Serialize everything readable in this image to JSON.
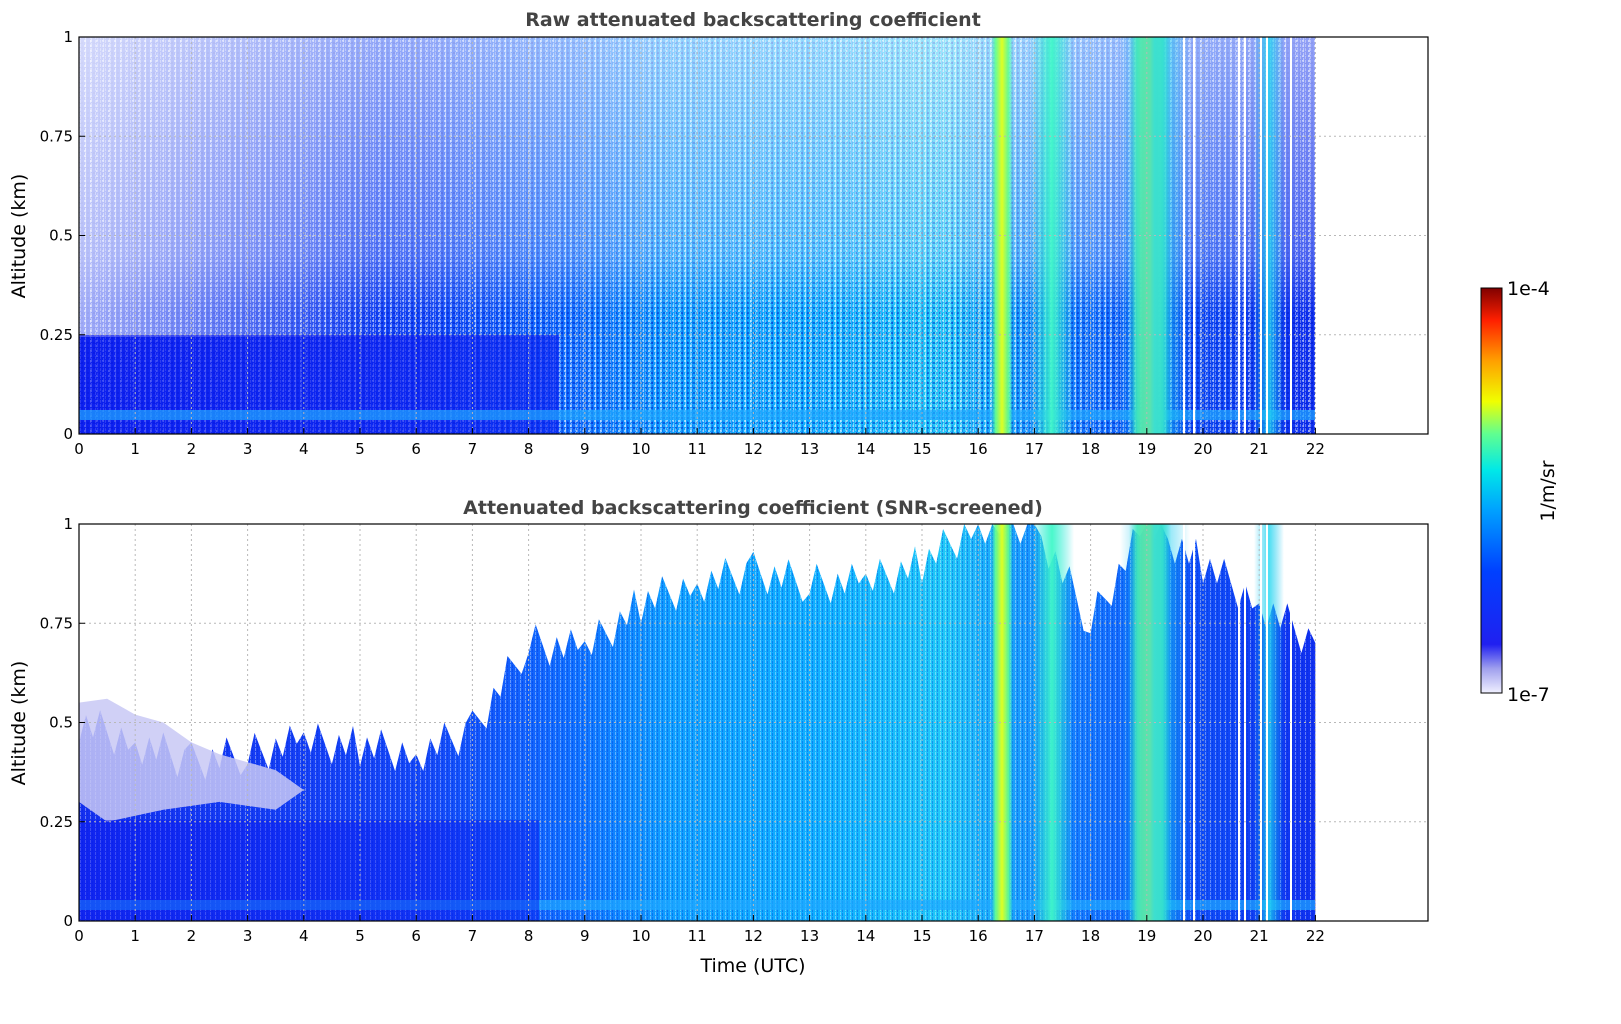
{
  "chart_data": [
    {
      "type": "heatmap",
      "title": "Raw attenuated backscattering coefficient",
      "xlabel": "",
      "ylabel": "Altitude (km)",
      "xlim": [
        0,
        24
      ],
      "ylim": [
        0,
        1
      ],
      "x_ticks": [
        "0",
        "1",
        "2",
        "3",
        "4",
        "5",
        "6",
        "7",
        "8",
        "9",
        "10",
        "11",
        "12",
        "13",
        "14",
        "15",
        "16",
        "17",
        "18",
        "19",
        "20",
        "21",
        "22"
      ],
      "y_ticks": [
        "0",
        "0.25",
        "0.5",
        "0.75",
        "1"
      ],
      "grid": true,
      "data_end_hour": 22,
      "time_bands_hours": [
        {
          "start": 16.3,
          "end": 16.6,
          "intensity": "high"
        },
        {
          "start": 17.0,
          "end": 17.7,
          "intensity": "medium"
        },
        {
          "start": 18.8,
          "end": 19.5,
          "intensity": "very high"
        },
        {
          "start": 20.6,
          "end": 21.3,
          "intensity": "medium"
        }
      ],
      "screened": false
    },
    {
      "type": "heatmap",
      "title": "Attenuated backscattering coefficient (SNR-screened)",
      "xlabel": "Time (UTC)",
      "ylabel": "Altitude (km)",
      "xlim": [
        0,
        24
      ],
      "ylim": [
        0,
        1
      ],
      "x_ticks": [
        "0",
        "1",
        "2",
        "3",
        "4",
        "5",
        "6",
        "7",
        "8",
        "9",
        "10",
        "11",
        "12",
        "13",
        "14",
        "15",
        "16",
        "17",
        "18",
        "19",
        "20",
        "21",
        "22"
      ],
      "y_ticks": [
        "0",
        "0.25",
        "0.5",
        "0.75",
        "1"
      ],
      "grid": true,
      "data_end_hour": 22,
      "screened": true,
      "signal_top_km": [
        {
          "hour": 0,
          "km": 0.5
        },
        {
          "hour": 1,
          "km": 0.45
        },
        {
          "hour": 2,
          "km": 0.4
        },
        {
          "hour": 3,
          "km": 0.42
        },
        {
          "hour": 4,
          "km": 0.45
        },
        {
          "hour": 5,
          "km": 0.44
        },
        {
          "hour": 6,
          "km": 0.42
        },
        {
          "hour": 7,
          "km": 0.48
        },
        {
          "hour": 8,
          "km": 0.7
        },
        {
          "hour": 9,
          "km": 0.68
        },
        {
          "hour": 10,
          "km": 0.8
        },
        {
          "hour": 11,
          "km": 0.85
        },
        {
          "hour": 12,
          "km": 0.88
        },
        {
          "hour": 13,
          "km": 0.85
        },
        {
          "hour": 14,
          "km": 0.85
        },
        {
          "hour": 15,
          "km": 0.9
        },
        {
          "hour": 16,
          "km": 1.0
        },
        {
          "hour": 17,
          "km": 1.0
        },
        {
          "hour": 18,
          "km": 0.75
        },
        {
          "hour": 19,
          "km": 1.0
        },
        {
          "hour": 20,
          "km": 0.9
        },
        {
          "hour": 21,
          "km": 0.8
        },
        {
          "hour": 22,
          "km": 0.7
        }
      ]
    }
  ],
  "colorbar": {
    "label": "1/m/sr",
    "max_label": "1e-4",
    "min_label": "1e-7",
    "colors": [
      "#e8e8fa",
      "#c8c8f2",
      "#9a9aee",
      "#5050ea",
      "#0000f0",
      "#0020ff",
      "#0060ff",
      "#00a0ff",
      "#00e0f0",
      "#30ffc0",
      "#a0ff50",
      "#ffff00",
      "#ffb000",
      "#ff5000",
      "#e00000",
      "#800000"
    ]
  }
}
